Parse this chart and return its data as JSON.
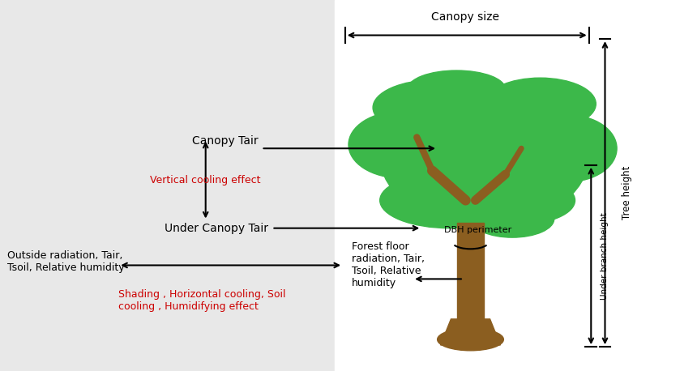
{
  "bg_color": "#e8e8e8",
  "tree_green_color": "#3cb84a",
  "tree_trunk_color": "#8B5E20",
  "canopy_size_label": "Canopy size",
  "tree_height_label": "Tree height",
  "under_branch_label": "Under branch height",
  "canopy_tair_label": "Canopy Tair",
  "under_canopy_tair_label": "Under Canopy Tair",
  "vertical_cooling_label": "Vertical cooling effect",
  "outside_radiation_label": "Outside radiation, Tair,\nTsoil, Relative humidity",
  "forest_floor_label": "Forest floor\nradiation, Tair,\nTsoil, Relative\nhumidity",
  "shading_label": "Shading , Horizontal cooling, Soil\ncooling , Humidifying effect",
  "dbh_label": "DBH perimeter",
  "red_color": "#cc0000",
  "black_color": "#000000"
}
